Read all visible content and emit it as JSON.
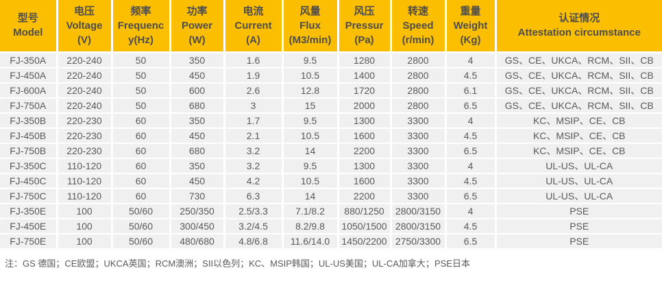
{
  "colors": {
    "header_bg": "#FCBE00",
    "row_bg": "#F0F0F0",
    "grid": "#FFFFFF",
    "header_text": "#4D4D4D",
    "body_text": "#595959"
  },
  "table": {
    "columns": [
      {
        "key": "model",
        "lines": [
          "型号",
          "Model"
        ]
      },
      {
        "key": "voltage",
        "lines": [
          "电压",
          "Voltage",
          "(V)"
        ]
      },
      {
        "key": "frequency",
        "lines": [
          "频率",
          "Frequenc",
          "y(Hz)"
        ]
      },
      {
        "key": "power",
        "lines": [
          "功率",
          "Power",
          "(W)"
        ]
      },
      {
        "key": "current",
        "lines": [
          "电流",
          "Current",
          "(A)"
        ]
      },
      {
        "key": "flux",
        "lines": [
          "风量",
          "Flux",
          "(M3/min)"
        ]
      },
      {
        "key": "pressure",
        "lines": [
          "风压",
          "Pressur",
          "(Pa)"
        ]
      },
      {
        "key": "speed",
        "lines": [
          "转速",
          "Speed",
          "(r/min)"
        ]
      },
      {
        "key": "weight",
        "lines": [
          "重量",
          "Weight",
          "(Kg)"
        ]
      },
      {
        "key": "attestation",
        "lines": [
          "认证情况",
          "Attestation circumstance"
        ]
      }
    ],
    "rows": [
      [
        "FJ-350A",
        "220-240",
        "50",
        "350",
        "1.6",
        "9.5",
        "1280",
        "2800",
        "4",
        "GS、CE、UKCA、RCM、SII、CB"
      ],
      [
        "FJ-450A",
        "220-240",
        "50",
        "450",
        "1.9",
        "10.5",
        "1400",
        "2800",
        "4.5",
        "GS、CE、UKCA、RCM、SII、CB"
      ],
      [
        "FJ-600A",
        "220-240",
        "50",
        "600",
        "2.6",
        "12.8",
        "1720",
        "2800",
        "6.1",
        "GS、CE、UKCA、RCM、SII、CB"
      ],
      [
        "FJ-750A",
        "220-240",
        "50",
        "680",
        "3",
        "15",
        "2000",
        "2800",
        "6.5",
        "GS、CE、UKCA、RCM、SII、CB"
      ],
      [
        "FJ-350B",
        "220-230",
        "60",
        "350",
        "1.7",
        "9.5",
        "1300",
        "3300",
        "4",
        "KC、MSIP、CE、CB"
      ],
      [
        "FJ-450B",
        "220-230",
        "60",
        "450",
        "2.1",
        "10.5",
        "1600",
        "3300",
        "4.5",
        "KC、MSIP、CE、CB"
      ],
      [
        "FJ-750B",
        "220-230",
        "60",
        "680",
        "3.2",
        "14",
        "2200",
        "3300",
        "6.5",
        "KC、MSIP、CE、CB"
      ],
      [
        "FJ-350C",
        "110-120",
        "60",
        "350",
        "3.2",
        "9.5",
        "1300",
        "3300",
        "4",
        "UL-US、UL-CA"
      ],
      [
        "FJ-450C",
        "110-120",
        "60",
        "450",
        "4.2",
        "10.5",
        "1600",
        "3300",
        "4.5",
        "UL-US、UL-CA"
      ],
      [
        "FJ-750C",
        "110-120",
        "60",
        "730",
        "6.3",
        "14",
        "2200",
        "3300",
        "6.5",
        "UL-US、UL-CA"
      ],
      [
        "FJ-350E",
        "100",
        "50/60",
        "250/350",
        "2.5/3.3",
        "7.1/8.2",
        "880/1250",
        "2800/3150",
        "4",
        "PSE"
      ],
      [
        "FJ-450E",
        "100",
        "50/60",
        "300/450",
        "3.2/4.5",
        "8.2/9.8",
        "1050/1500",
        "2800/3150",
        "4.5",
        "PSE"
      ],
      [
        "FJ-750E",
        "100",
        "50/60",
        "480/680",
        "4.8/6.8",
        "11.6/14.0",
        "1450/2200",
        "2750/3300",
        "6.5",
        "PSE"
      ]
    ]
  },
  "footnote": "注：GS 德国；CE欧盟；UKCA英国；RCM澳洲；SII以色列；KC、MSIP韩国；UL-US美国；UL-CA加拿大；PSE日本"
}
